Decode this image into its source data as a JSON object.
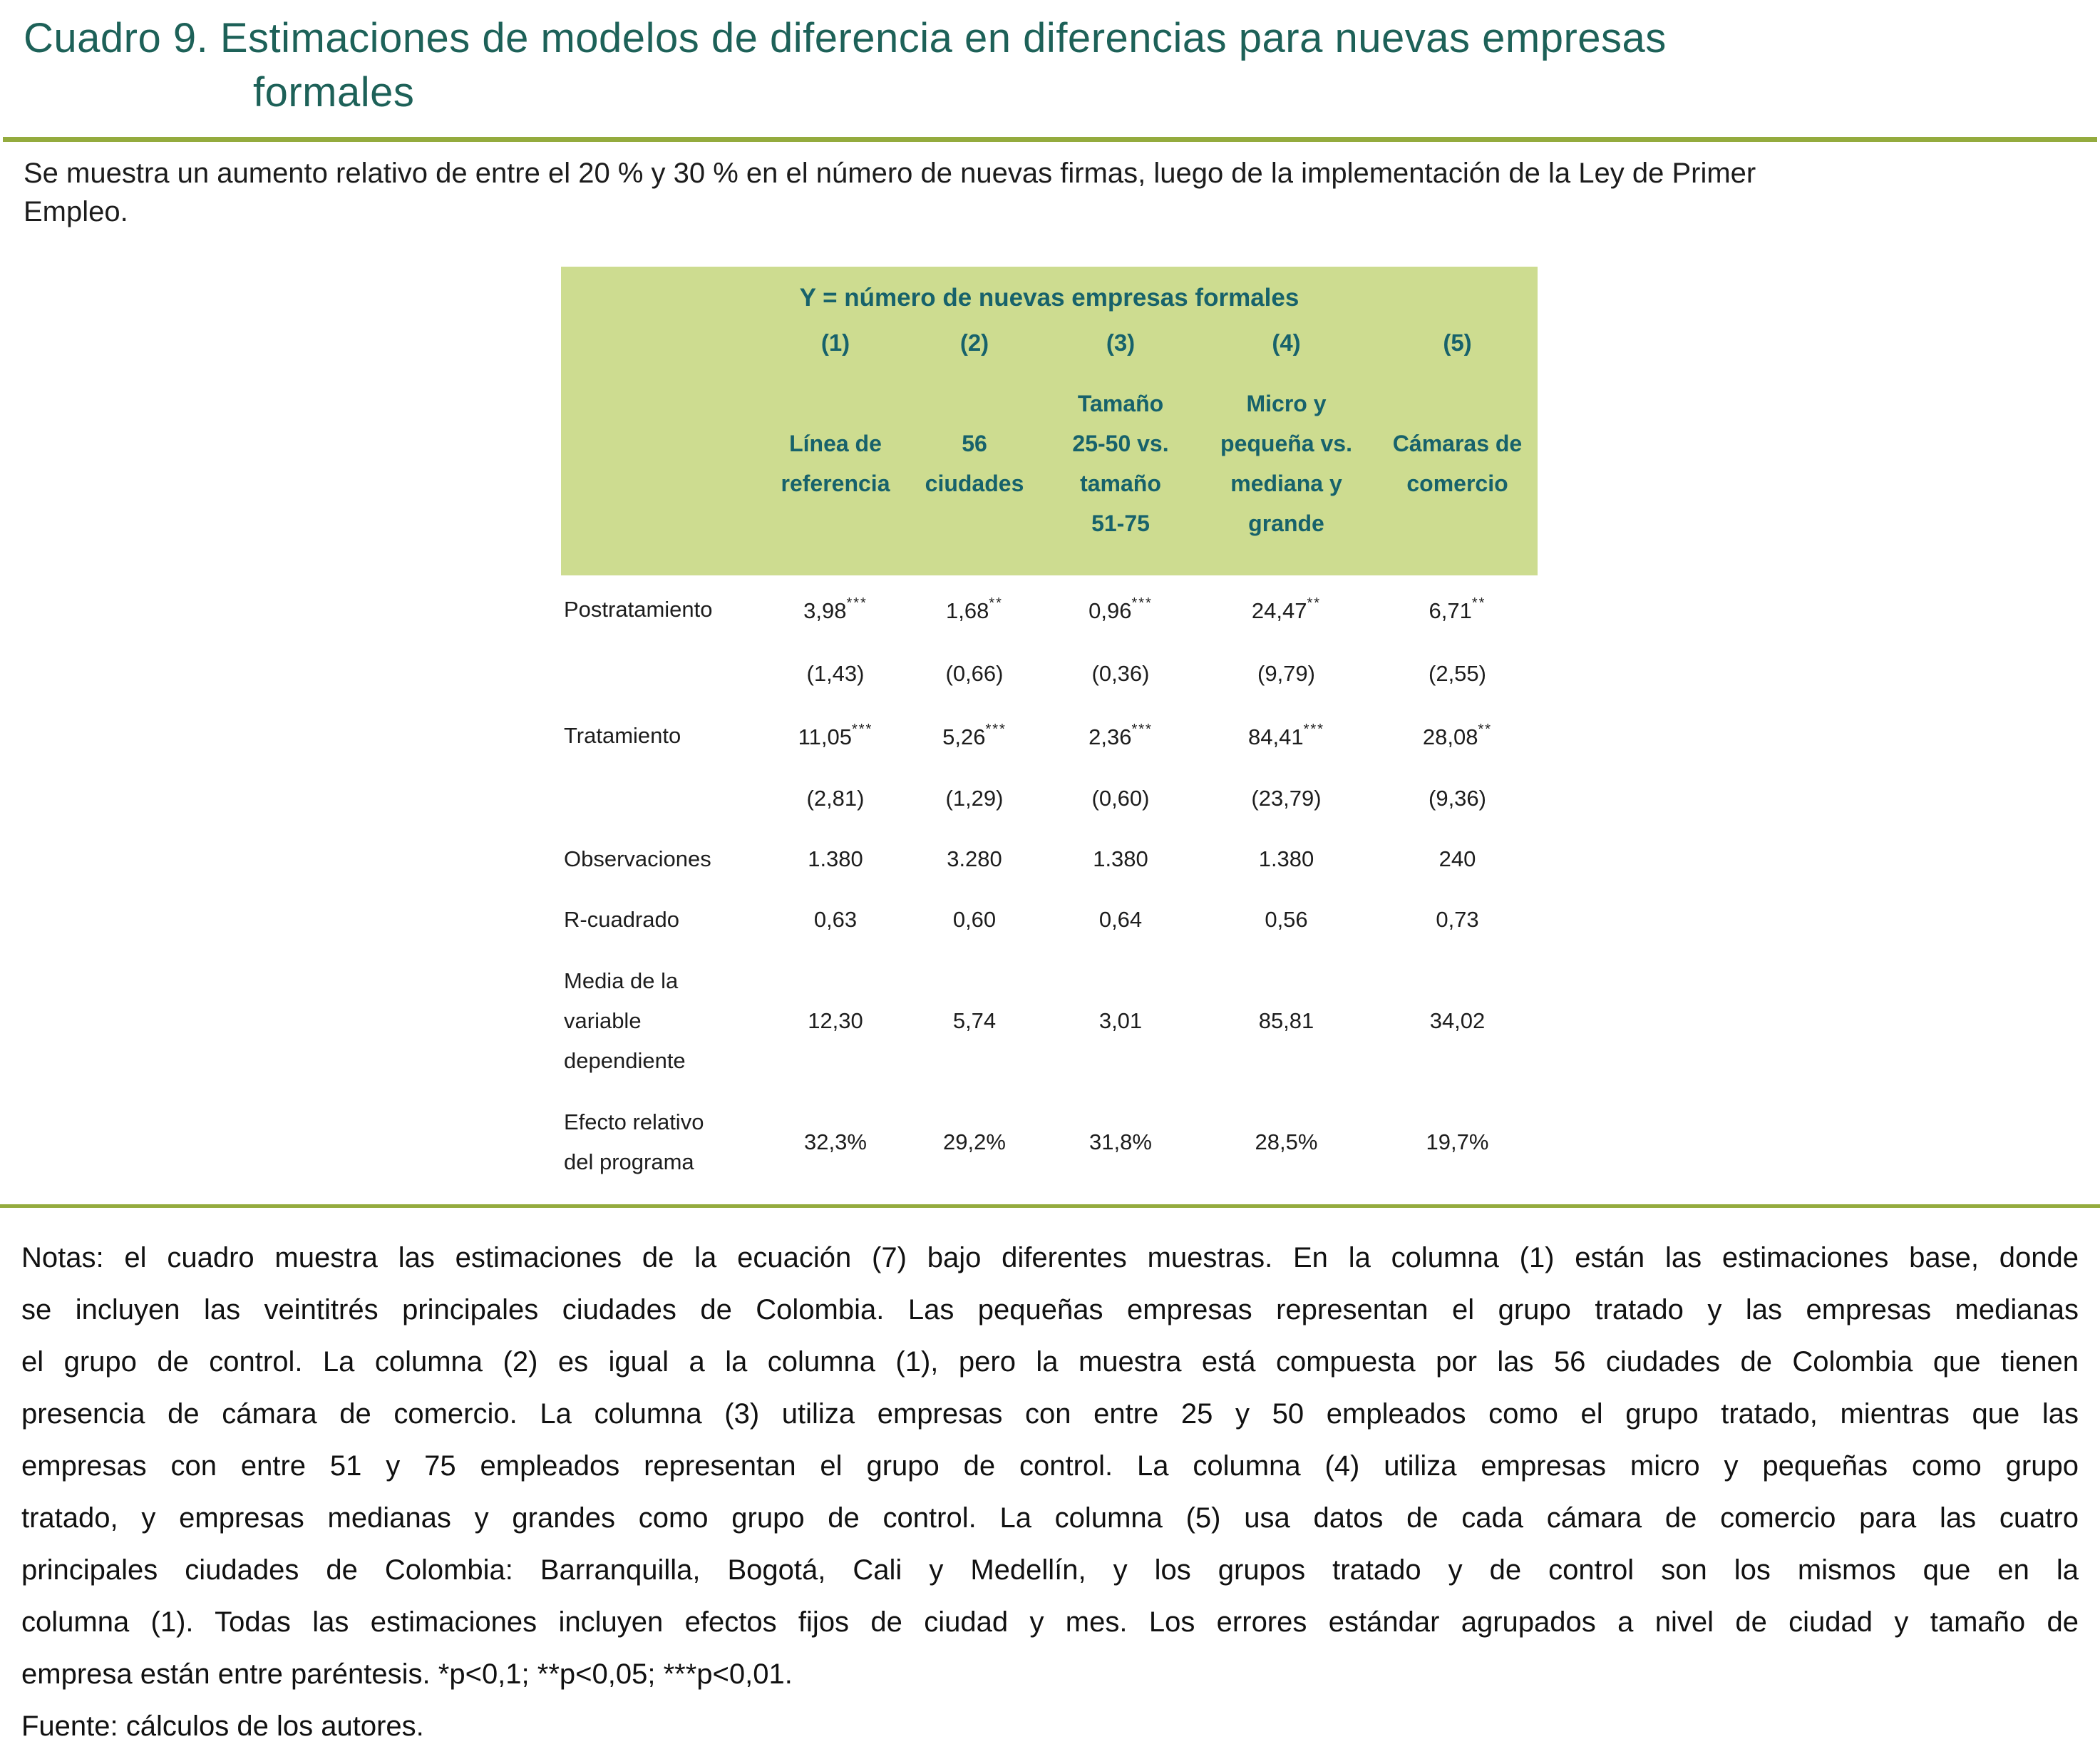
{
  "title": {
    "line1": "Cuadro 9. Estimaciones de modelos de diferencia en diferencias para nuevas empresas",
    "line2": "formales"
  },
  "intro": {
    "lines": [
      "Se muestra un aumento relativo de entre el 20 % y 30 % en el número de nuevas firmas, luego de la implementación de la Ley de Primer",
      "Empleo."
    ]
  },
  "table": {
    "y_title": "Y = número de nuevas empresas formales",
    "column_numbers": [
      "(1)",
      "(2)",
      "(3)",
      "(4)",
      "(5)"
    ],
    "column_headers": [
      "Línea de\nreferencia",
      "56\nciudades",
      "Tamaño\n25-50 vs.\ntamaño\n51-75",
      "Micro y\npequeña vs.\nmediana y\ngrande",
      "Cámaras de\ncomercio"
    ],
    "rows": [
      {
        "label": "Postratamiento",
        "values": [
          "3,98***",
          "1,68**",
          "0,96***",
          "24,47**",
          "6,71**"
        ]
      },
      {
        "label": "",
        "values": [
          "(1,43)",
          "(0,66)",
          "(0,36)",
          "(9,79)",
          "(2,55)"
        ]
      },
      {
        "label": "Tratamiento",
        "values": [
          "11,05***",
          "5,26***",
          "2,36***",
          "84,41***",
          "28,08**"
        ]
      },
      {
        "label": "",
        "values": [
          "(2,81)",
          "(1,29)",
          "(0,60)",
          "(23,79)",
          "(9,36)"
        ]
      },
      {
        "label": "Observaciones",
        "values": [
          "1.380",
          "3.280",
          "1.380",
          "1.380",
          "240"
        ]
      },
      {
        "label": "R-cuadrado",
        "values": [
          "0,63",
          "0,60",
          "0,64",
          "0,56",
          "0,73"
        ]
      },
      {
        "label": "Media de la\nvariable\ndependiente",
        "values": [
          "12,30",
          "5,74",
          "3,01",
          "85,81",
          "34,02"
        ]
      },
      {
        "label": "Efecto relativo\ndel programa",
        "values": [
          "32,3%",
          "29,2%",
          "31,8%",
          "28,5%",
          "19,7%"
        ]
      }
    ]
  },
  "notes": {
    "lines": [
      "Notas: el cuadro muestra las estimaciones de la ecuación (7) bajo diferentes muestras. En la columna (1) están las estimaciones base, donde",
      "se incluyen las veintitrés principales ciudades de Colombia. Las pequeñas empresas representan el grupo tratado y las empresas medianas",
      "el grupo de control. La columna (2) es igual a la columna (1), pero la muestra está compuesta por las 56 ciudades de Colombia que tienen",
      "presencia de cámara de comercio. La columna (3) utiliza empresas con entre 25 y 50 empleados como el grupo tratado, mientras que las",
      "empresas con entre 51 y 75 empleados representan el grupo de control. La columna (4) utiliza empresas micro y pequeñas como grupo",
      "tratado, y empresas medianas y grandes como grupo de control. La columna (5) usa datos de cada cámara de comercio para las cuatro",
      "principales ciudades de Colombia: Barranquilla, Bogotá, Cali y Medellín, y los grupos tratado y de control son los mismos que en la",
      "columna (1). Todas las estimaciones incluyen efectos fijos de ciudad y mes. Los errores estándar agrupados a nivel de ciudad y tamaño de",
      "empresa están entre paréntesis. *p<0,1; **p<0,05; ***p<0,01."
    ],
    "fuente": "Fuente: cálculos de los autores."
  },
  "colors": {
    "title_teal": "#1d6158",
    "table_header_teal": "#17626b",
    "table_background_green": "#cddc90",
    "rule_olive": "#94ab3e"
  }
}
